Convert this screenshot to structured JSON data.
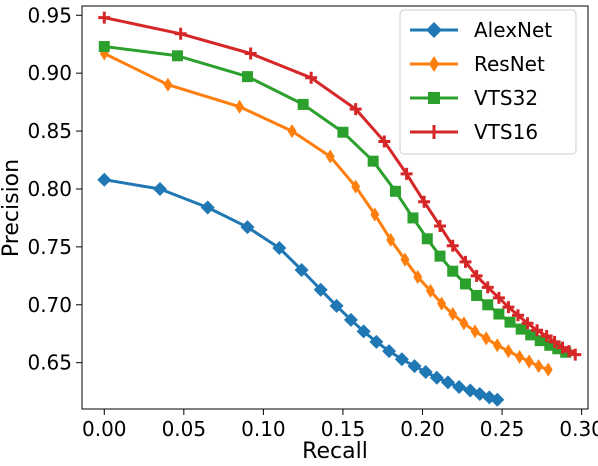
{
  "chart_data": {
    "type": "line",
    "xlabel": "Recall",
    "ylabel": "Precision",
    "xlim": [
      -0.014,
      0.304
    ],
    "ylim": [
      0.61,
      0.958
    ],
    "xticks": [
      "0.00",
      "0.05",
      "0.10",
      "0.15",
      "0.20",
      "0.25",
      "0.30"
    ],
    "yticks": [
      "0.65",
      "0.70",
      "0.75",
      "0.80",
      "0.85",
      "0.90",
      "0.95"
    ],
    "legend_position": "top-right",
    "grid": false,
    "series": [
      {
        "name": "AlexNet",
        "color": "#1f77b4",
        "marker": "diamond",
        "points": [
          [
            0.0,
            0.808
          ],
          [
            0.035,
            0.8
          ],
          [
            0.065,
            0.784
          ],
          [
            0.09,
            0.767
          ],
          [
            0.11,
            0.749
          ],
          [
            0.124,
            0.73
          ],
          [
            0.136,
            0.713
          ],
          [
            0.146,
            0.699
          ],
          [
            0.155,
            0.687
          ],
          [
            0.163,
            0.677
          ],
          [
            0.171,
            0.668
          ],
          [
            0.179,
            0.66
          ],
          [
            0.187,
            0.653
          ],
          [
            0.195,
            0.647
          ],
          [
            0.202,
            0.642
          ],
          [
            0.209,
            0.637
          ],
          [
            0.216,
            0.633
          ],
          [
            0.223,
            0.629
          ],
          [
            0.23,
            0.626
          ],
          [
            0.236,
            0.623
          ],
          [
            0.242,
            0.62
          ],
          [
            0.247,
            0.618
          ]
        ]
      },
      {
        "name": "ResNet",
        "color": "#ff7f0e",
        "marker": "thin-diamond",
        "points": [
          [
            0.0,
            0.917
          ],
          [
            0.04,
            0.89
          ],
          [
            0.085,
            0.871
          ],
          [
            0.118,
            0.85
          ],
          [
            0.142,
            0.828
          ],
          [
            0.158,
            0.802
          ],
          [
            0.17,
            0.778
          ],
          [
            0.18,
            0.756
          ],
          [
            0.189,
            0.739
          ],
          [
            0.197,
            0.724
          ],
          [
            0.205,
            0.712
          ],
          [
            0.212,
            0.701
          ],
          [
            0.219,
            0.692
          ],
          [
            0.226,
            0.684
          ],
          [
            0.233,
            0.677
          ],
          [
            0.24,
            0.671
          ],
          [
            0.247,
            0.665
          ],
          [
            0.254,
            0.66
          ],
          [
            0.261,
            0.655
          ],
          [
            0.267,
            0.651
          ],
          [
            0.273,
            0.647
          ],
          [
            0.279,
            0.644
          ]
        ]
      },
      {
        "name": "VTS32",
        "color": "#2ca02c",
        "marker": "square",
        "points": [
          [
            0.0,
            0.923
          ],
          [
            0.046,
            0.915
          ],
          [
            0.09,
            0.897
          ],
          [
            0.125,
            0.873
          ],
          [
            0.15,
            0.849
          ],
          [
            0.169,
            0.824
          ],
          [
            0.183,
            0.798
          ],
          [
            0.194,
            0.775
          ],
          [
            0.203,
            0.757
          ],
          [
            0.211,
            0.742
          ],
          [
            0.219,
            0.729
          ],
          [
            0.227,
            0.718
          ],
          [
            0.234,
            0.708
          ],
          [
            0.241,
            0.7
          ],
          [
            0.248,
            0.692
          ],
          [
            0.255,
            0.685
          ],
          [
            0.262,
            0.679
          ],
          [
            0.268,
            0.674
          ],
          [
            0.274,
            0.669
          ],
          [
            0.28,
            0.665
          ],
          [
            0.285,
            0.662
          ],
          [
            0.29,
            0.659
          ]
        ]
      },
      {
        "name": "VTS16",
        "color": "#d62728",
        "marker": "plus",
        "points": [
          [
            0.0,
            0.948
          ],
          [
            0.048,
            0.934
          ],
          [
            0.092,
            0.917
          ],
          [
            0.13,
            0.896
          ],
          [
            0.158,
            0.869
          ],
          [
            0.176,
            0.841
          ],
          [
            0.19,
            0.813
          ],
          [
            0.201,
            0.789
          ],
          [
            0.211,
            0.768
          ],
          [
            0.219,
            0.751
          ],
          [
            0.227,
            0.737
          ],
          [
            0.234,
            0.725
          ],
          [
            0.241,
            0.715
          ],
          [
            0.248,
            0.706
          ],
          [
            0.254,
            0.698
          ],
          [
            0.26,
            0.691
          ],
          [
            0.266,
            0.684
          ],
          [
            0.272,
            0.678
          ],
          [
            0.278,
            0.673
          ],
          [
            0.283,
            0.668
          ],
          [
            0.288,
            0.663
          ],
          [
            0.292,
            0.66
          ],
          [
            0.296,
            0.657
          ]
        ]
      }
    ]
  }
}
